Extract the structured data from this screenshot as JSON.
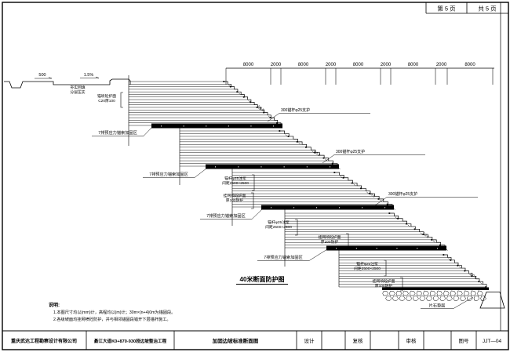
{
  "page": {
    "left_box": "第 5 页",
    "right_box": "共 5 页"
  },
  "dimensions": {
    "values": [
      "8000",
      "2000",
      "8000",
      "2000",
      "8000",
      "2000",
      "8000",
      "2000",
      "8000"
    ]
  },
  "labels": {
    "dim_500": "500",
    "grade": "1.5%",
    "slope_ratio": "1:0.5",
    "bar_label": "7排预应力锚索加固区",
    "step_anchor_label": "300锚杆φ25支护",
    "riprap_label": "片石垫层",
    "drawing_title": "40米断面防护图"
  },
  "annotations": {
    "bench": {
      "l1": "夯实回填",
      "l2": "分层压实"
    },
    "shotcrete": {
      "l1": "锚喷砼护面",
      "l2": "C20厚100"
    },
    "anchor_spec": {
      "l1": "锚杆φ25注浆",
      "l2": "间距2500×2500"
    },
    "mesh_spec": {
      "l1": "挂网喷砼护面",
      "l2": "厚100防护"
    }
  },
  "notes": {
    "heading": "说明:",
    "line1": "1.本图尺寸均以(mm)计，高程均以(m)计；30m×(n+4)0m为锚固段。",
    "line2": "2.各级坡面均挂网喷砼防护，并与相邻锚固段错开下层锚杆施工。"
  },
  "titleblock": {
    "company": "重庆武达工程勘察设计有限公司",
    "project": "綦江大道K0+870-930段边坡整治工程",
    "drawing_title": "加固边坡标准断面图",
    "design_label": "设计",
    "check_label": "复核",
    "review_label": "审核",
    "figno_label": "图号",
    "fig_no": "JJT—04"
  }
}
